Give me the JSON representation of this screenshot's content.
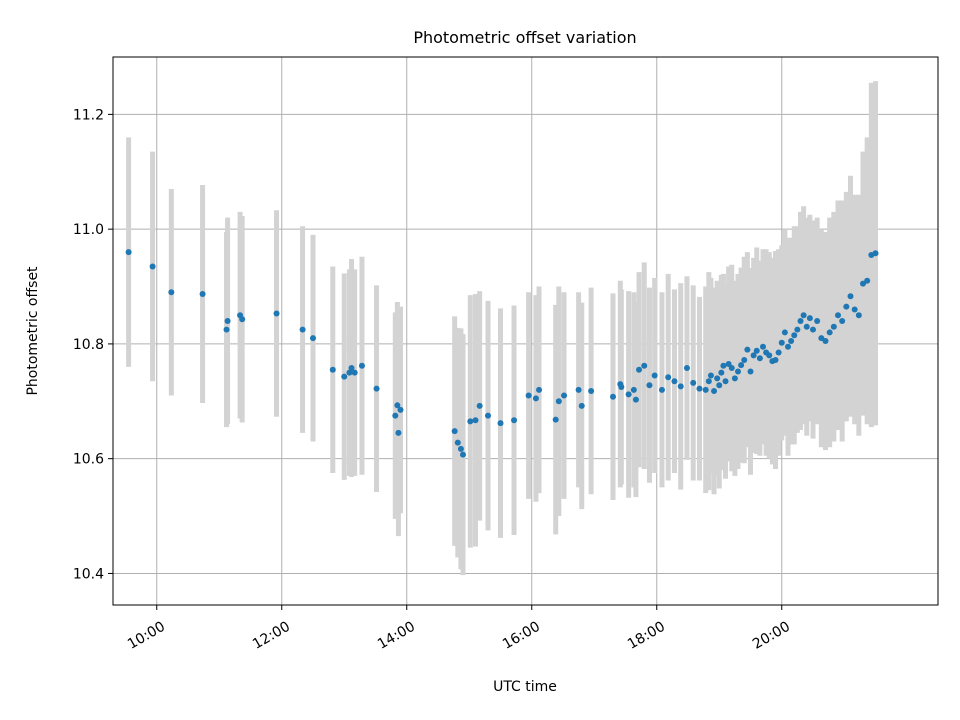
{
  "chart_data": {
    "type": "scatter",
    "title": "Photometric offset variation",
    "xlabel": "UTC time",
    "ylabel": "Photometric offset",
    "grid": true,
    "x_unit": "UTC time (HH:MM)",
    "xlim": [
      "09:18",
      "22:30"
    ],
    "ylim": [
      10.345,
      11.3
    ],
    "x_ticks": [
      "10:00",
      "12:00",
      "14:00",
      "16:00",
      "18:00",
      "20:00"
    ],
    "y_ticks": [
      "10.4",
      "10.6",
      "10.8",
      "11.0",
      "11.2"
    ],
    "colors": {
      "point": "#1f77b4",
      "errorbar": "#d3d3d3",
      "grid": "#b0b0b0"
    },
    "series": [
      {
        "x": [
          "09:33",
          "09:56",
          "10:14",
          "10:44",
          "11:07",
          "11:08",
          "11:20",
          "11:22",
          "11:55",
          "12:20",
          "12:30",
          "12:49",
          "13:00",
          "13:05",
          "13:07",
          "13:10",
          "13:17",
          "13:31",
          "13:49",
          "13:51",
          "13:52",
          "13:54",
          "14:46",
          "14:49",
          "14:52",
          "14:54",
          "15:01",
          "15:06",
          "15:10",
          "15:18",
          "15:30",
          "15:43",
          "15:57",
          "16:04",
          "16:07",
          "16:23",
          "16:26",
          "16:31",
          "16:45",
          "16:48",
          "16:57",
          "17:18",
          "17:25",
          "17:26",
          "17:33",
          "17:38",
          "17:40",
          "17:43",
          "17:48",
          "17:53",
          "17:58",
          "18:05",
          "18:11",
          "18:17",
          "18:23",
          "18:29",
          "18:35",
          "18:41",
          "18:47",
          "18:50",
          "18:52",
          "18:55",
          "18:58",
          "19:00",
          "19:02",
          "19:04",
          "19:06",
          "19:09",
          "19:12",
          "19:15",
          "19:18",
          "19:21",
          "19:24",
          "19:27",
          "19:30",
          "19:33",
          "19:36",
          "19:39",
          "19:42",
          "19:45",
          "19:48",
          "19:51",
          "19:54",
          "19:57",
          "20:00",
          "20:03",
          "20:06",
          "20:09",
          "20:12",
          "20:15",
          "20:18",
          "20:21",
          "20:24",
          "20:27",
          "20:30",
          "20:34",
          "20:38",
          "20:42",
          "20:46",
          "20:50",
          "20:54",
          "20:58",
          "21:02",
          "21:06",
          "21:10",
          "21:14",
          "21:18",
          "21:22",
          "21:26",
          "21:30"
        ],
        "y": [
          10.96,
          10.935,
          10.89,
          10.887,
          10.825,
          10.84,
          10.85,
          10.843,
          10.853,
          10.825,
          10.81,
          10.755,
          10.743,
          10.75,
          10.758,
          10.75,
          10.762,
          10.722,
          10.675,
          10.693,
          10.645,
          10.685,
          10.648,
          10.628,
          10.617,
          10.607,
          10.665,
          10.667,
          10.692,
          10.675,
          10.662,
          10.667,
          10.71,
          10.705,
          10.72,
          10.668,
          10.7,
          10.71,
          10.72,
          10.692,
          10.718,
          10.708,
          10.73,
          10.725,
          10.712,
          10.72,
          10.703,
          10.755,
          10.762,
          10.728,
          10.745,
          10.72,
          10.742,
          10.735,
          10.726,
          10.758,
          10.732,
          10.722,
          10.72,
          10.735,
          10.745,
          10.718,
          10.74,
          10.728,
          10.75,
          10.762,
          10.735,
          10.765,
          10.758,
          10.74,
          10.752,
          10.763,
          10.772,
          10.79,
          10.752,
          10.78,
          10.788,
          10.775,
          10.795,
          10.785,
          10.78,
          10.77,
          10.772,
          10.785,
          10.802,
          10.82,
          10.795,
          10.805,
          10.815,
          10.825,
          10.84,
          10.85,
          10.83,
          10.845,
          10.825,
          10.84,
          10.81,
          10.805,
          10.82,
          10.83,
          10.85,
          10.84,
          10.865,
          10.883,
          10.86,
          10.85,
          10.905,
          10.91,
          10.955,
          10.958
        ],
        "err": [
          0.2,
          0.2,
          0.18,
          0.19,
          0.17,
          0.18,
          0.18,
          0.18,
          0.18,
          0.18,
          0.18,
          0.18,
          0.18,
          0.18,
          0.19,
          0.18,
          0.19,
          0.18,
          0.18,
          0.18,
          0.18,
          0.18,
          0.2,
          0.2,
          0.21,
          0.21,
          0.22,
          0.22,
          0.2,
          0.2,
          0.2,
          0.2,
          0.18,
          0.18,
          0.18,
          0.2,
          0.2,
          0.18,
          0.17,
          0.18,
          0.18,
          0.18,
          0.18,
          0.17,
          0.18,
          0.17,
          0.17,
          0.17,
          0.18,
          0.17,
          0.17,
          0.17,
          0.18,
          0.16,
          0.18,
          0.16,
          0.17,
          0.16,
          0.18,
          0.19,
          0.17,
          0.18,
          0.17,
          0.18,
          0.17,
          0.16,
          0.17,
          0.17,
          0.18,
          0.17,
          0.17,
          0.17,
          0.18,
          0.17,
          0.18,
          0.17,
          0.18,
          0.17,
          0.17,
          0.18,
          0.18,
          0.18,
          0.19,
          0.18,
          0.17,
          0.18,
          0.19,
          0.18,
          0.19,
          0.18,
          0.19,
          0.19,
          0.19,
          0.18,
          0.19,
          0.18,
          0.19,
          0.19,
          0.2,
          0.2,
          0.2,
          0.21,
          0.2,
          0.21,
          0.2,
          0.21,
          0.23,
          0.25,
          0.3,
          0.3
        ]
      }
    ]
  }
}
